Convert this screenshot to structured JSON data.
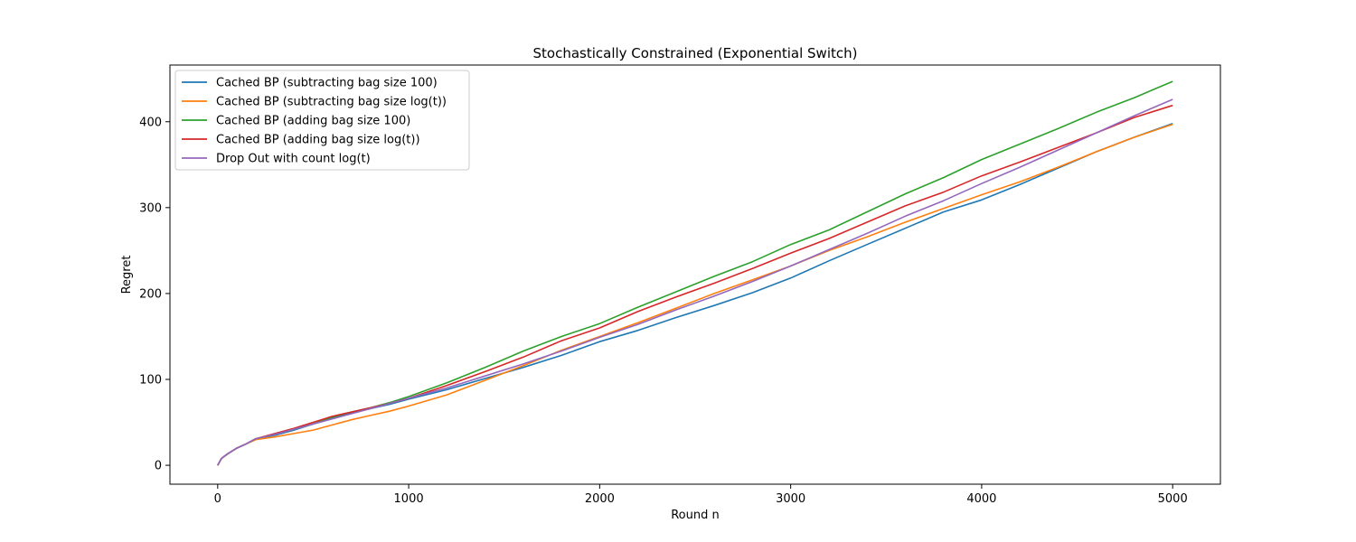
{
  "chart_data": {
    "type": "line",
    "title": "Stochastically Constrained (Exponential Switch)",
    "xlabel": "Round n",
    "ylabel": "Regret",
    "xlim": [
      -250,
      5250
    ],
    "ylim": [
      -22,
      466
    ],
    "xticks": [
      0,
      1000,
      2000,
      3000,
      4000,
      5000
    ],
    "yticks": [
      0,
      100,
      200,
      300,
      400
    ],
    "grid": false,
    "legend_position": "top-left",
    "series": [
      {
        "name": "Cached BP (subtracting bag size 100)",
        "color": "#1f77b4",
        "x": [
          0,
          20,
          50,
          100,
          150,
          200,
          300,
          400,
          500,
          600,
          700,
          800,
          900,
          1000,
          1200,
          1400,
          1600,
          1800,
          2000,
          2200,
          2400,
          2600,
          2800,
          3000,
          3200,
          3400,
          3600,
          3800,
          4000,
          4200,
          4400,
          4600,
          4800,
          5000
        ],
        "y": [
          0,
          8,
          13,
          20,
          25,
          31,
          35,
          41,
          48,
          55,
          61,
          66,
          71,
          77,
          88,
          101,
          114,
          128,
          144,
          157,
          172,
          186,
          201,
          218,
          238,
          257,
          276,
          295,
          309,
          327,
          346,
          365,
          382,
          398
        ]
      },
      {
        "name": "Cached BP (subtracting bag size log(t))",
        "color": "#ff7f0e",
        "x": [
          0,
          20,
          50,
          100,
          150,
          200,
          300,
          400,
          500,
          600,
          700,
          800,
          900,
          1000,
          1200,
          1400,
          1600,
          1800,
          2000,
          2200,
          2400,
          2600,
          2800,
          3000,
          3200,
          3400,
          3600,
          3800,
          4000,
          4200,
          4400,
          4600,
          4800,
          5000
        ],
        "y": [
          0,
          8,
          13,
          20,
          25,
          30,
          33,
          37,
          41,
          47,
          53,
          58,
          63,
          69,
          82,
          99,
          116,
          134,
          150,
          166,
          183,
          200,
          216,
          232,
          250,
          266,
          283,
          299,
          315,
          330,
          347,
          365,
          382,
          397
        ]
      },
      {
        "name": "Cached BP (adding bag size 100)",
        "color": "#2ca02c",
        "x": [
          0,
          20,
          50,
          100,
          150,
          200,
          300,
          400,
          500,
          600,
          700,
          800,
          900,
          1000,
          1200,
          1400,
          1600,
          1800,
          2000,
          2200,
          2400,
          2600,
          2800,
          3000,
          3200,
          3400,
          3600,
          3800,
          4000,
          4200,
          4400,
          4600,
          4800,
          5000
        ],
        "y": [
          0,
          8,
          13,
          20,
          25,
          31,
          36,
          42,
          48,
          56,
          62,
          67,
          73,
          80,
          96,
          114,
          133,
          150,
          165,
          184,
          202,
          220,
          237,
          257,
          274,
          295,
          316,
          335,
          356,
          374,
          392,
          411,
          428,
          447
        ]
      },
      {
        "name": "Cached BP (adding bag size log(t))",
        "color": "#d62728",
        "x": [
          0,
          20,
          50,
          100,
          150,
          200,
          300,
          400,
          500,
          600,
          700,
          800,
          900,
          1000,
          1200,
          1400,
          1600,
          1800,
          2000,
          2200,
          2400,
          2600,
          2800,
          3000,
          3200,
          3400,
          3600,
          3800,
          4000,
          4200,
          4400,
          4600,
          4800,
          5000
        ],
        "y": [
          0,
          8,
          13,
          20,
          25,
          31,
          37,
          43,
          50,
          57,
          62,
          67,
          72,
          78,
          93,
          109,
          126,
          145,
          160,
          179,
          196,
          212,
          229,
          247,
          264,
          283,
          302,
          318,
          337,
          353,
          370,
          387,
          405,
          419
        ]
      },
      {
        "name": "Drop Out with count log(t)",
        "color": "#9467bd",
        "x": [
          0,
          20,
          50,
          100,
          150,
          200,
          300,
          400,
          500,
          600,
          700,
          800,
          900,
          1000,
          1200,
          1400,
          1600,
          1800,
          2000,
          2200,
          2400,
          2600,
          2800,
          3000,
          3200,
          3400,
          3600,
          3800,
          4000,
          4200,
          4400,
          4600,
          4800,
          5000
        ],
        "y": [
          0,
          8,
          13,
          20,
          25,
          31,
          36,
          42,
          48,
          54,
          60,
          66,
          72,
          78,
          90,
          104,
          118,
          133,
          149,
          164,
          181,
          197,
          214,
          232,
          251,
          270,
          290,
          308,
          328,
          347,
          367,
          387,
          407,
          426
        ]
      }
    ]
  }
}
